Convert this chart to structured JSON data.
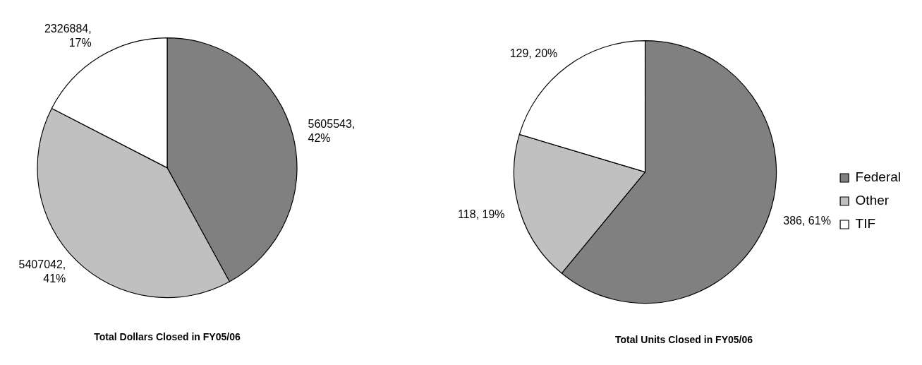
{
  "chart_data": [
    {
      "type": "pie",
      "title": "Total Dollars Closed in FY05/06",
      "categories": [
        null,
        null,
        null
      ],
      "values": [
        5605543,
        5407042,
        2326884
      ],
      "colors": [
        "#808080",
        "#c0c0c0",
        "#ffffff"
      ],
      "value_labels": [
        "5605543, 42%",
        "5407042, 41%",
        "2326884, 17%"
      ]
    },
    {
      "type": "pie",
      "title": "Total Units Closed in FY05/06",
      "categories": [
        "Federal",
        "Other",
        "TIF"
      ],
      "values": [
        386,
        118,
        129
      ],
      "colors": [
        "#808080",
        "#c0c0c0",
        "#ffffff"
      ],
      "value_labels": [
        "386, 61%",
        "118, 19%",
        "129, 20%"
      ],
      "legend": "right"
    }
  ]
}
